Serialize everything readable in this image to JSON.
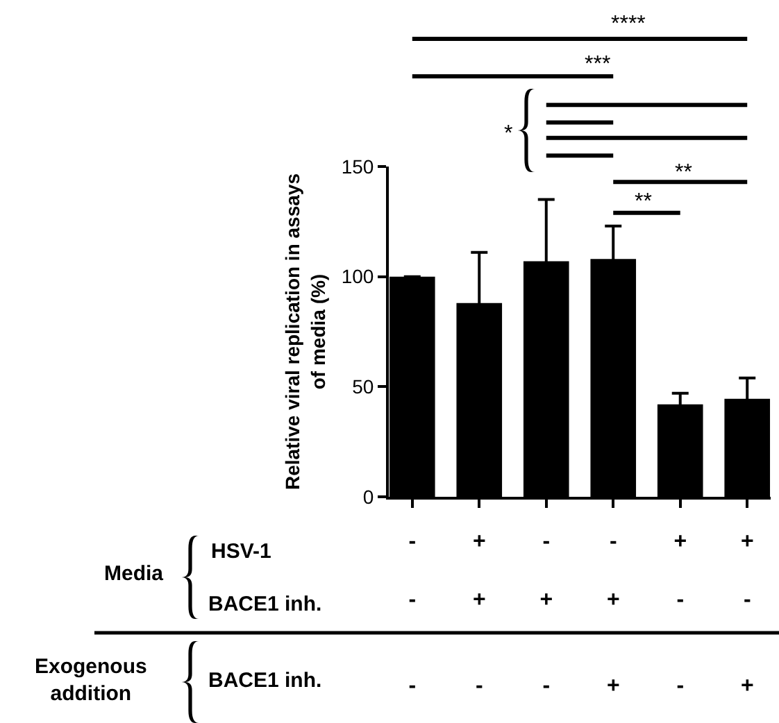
{
  "chart_data": {
    "type": "bar",
    "ylabel": "Relative viral replication in assays\nof media (%)",
    "categories": [
      "-\n-\n-",
      "+\n+\n-",
      "-\n+\n-",
      "-\n+\n+",
      "+\n-\n-",
      "+\n-\n+"
    ],
    "values": [
      100,
      88,
      107,
      108,
      42,
      44.5
    ],
    "errors": [
      null,
      23,
      28,
      15,
      5,
      9.5
    ],
    "color": "#000000",
    "ylim": [
      0,
      150
    ],
    "yticks": [
      0,
      50,
      100,
      150
    ],
    "annotations": [
      "****",
      "***",
      "*",
      "**",
      "**",
      "Media",
      "HSV-1",
      "BACE1 inh.",
      "Exogenous\naddition",
      "BACE1 inh."
    ]
  }
}
